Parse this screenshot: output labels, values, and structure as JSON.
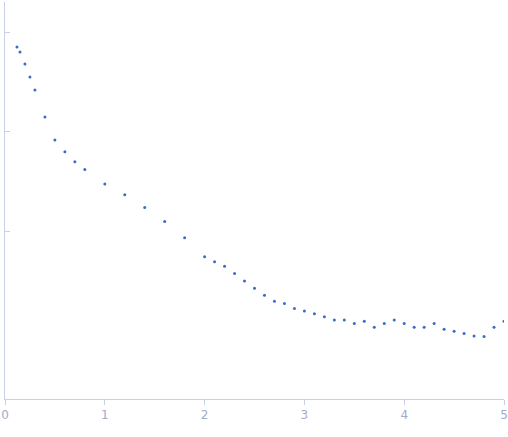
{
  "chart_data": {
    "type": "scatter",
    "color": "#3b6cc5",
    "marker": "circle",
    "log": "y",
    "tick_labels": "x",
    "x": [
      0.12,
      0.15,
      0.2,
      0.25,
      0.3,
      0.4,
      0.5,
      0.6,
      0.7,
      0.8,
      1.0,
      1.2,
      1.4,
      1.6,
      1.8,
      2.0,
      2.1,
      2.2,
      2.3,
      2.4,
      2.5,
      2.6,
      2.7,
      2.8,
      2.9,
      3.0,
      3.1,
      3.2,
      3.3,
      3.4,
      3.5,
      3.6,
      3.7,
      3.8,
      3.9,
      4.0,
      4.1,
      4.2,
      4.3,
      4.4,
      4.5,
      4.6,
      4.7,
      4.8,
      4.9,
      5.0
    ],
    "values": [
      70.8,
      63.1,
      47.9,
      35.5,
      26.3,
      14.1,
      8.3,
      6.3,
      5.0,
      4.2,
      3.0,
      2.34,
      1.74,
      1.26,
      0.87,
      0.56,
      0.5,
      0.45,
      0.38,
      0.32,
      0.27,
      0.23,
      0.2,
      0.19,
      0.17,
      0.16,
      0.15,
      0.14,
      0.13,
      0.13,
      0.12,
      0.126,
      0.11,
      0.12,
      0.13,
      0.12,
      0.11,
      0.11,
      0.12,
      0.105,
      0.1,
      0.095,
      0.09,
      0.089,
      0.11,
      0.126
    ],
    "xlim": [
      0,
      5
    ],
    "xticks": [
      0,
      1,
      2,
      3,
      4,
      5
    ],
    "ylim": [
      0.021,
      200
    ],
    "yticks": [
      1,
      10,
      100
    ]
  }
}
